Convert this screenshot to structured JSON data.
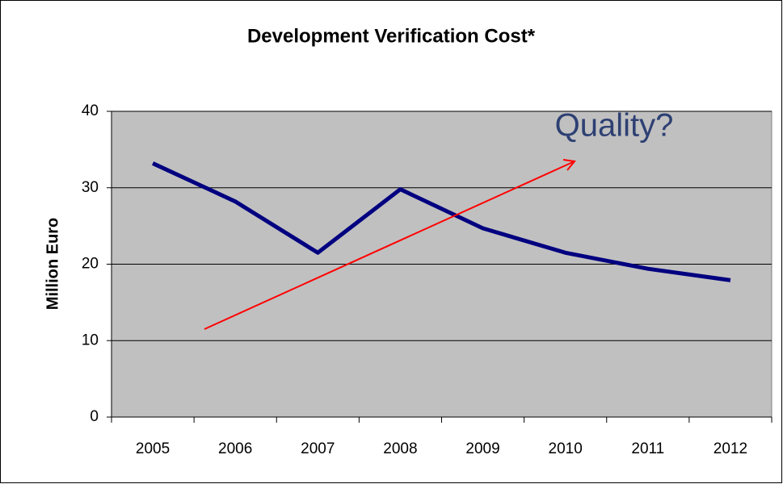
{
  "chart_data": {
    "type": "line",
    "title": "Development Verification Cost*",
    "y_label": "Million Euro",
    "annotation": "Quality?",
    "categories": [
      "2005",
      "2006",
      "2007",
      "2008",
      "2009",
      "2010",
      "2011",
      "2012"
    ],
    "series": [
      {
        "name": "Development Verification Cost",
        "color": "#000080",
        "values": [
          33.2,
          28.2,
          21.5,
          29.8,
          24.7,
          21.5,
          19.4,
          17.9
        ]
      }
    ],
    "ylim": [
      0,
      40
    ],
    "yticks": [
      0,
      10,
      20,
      30,
      40
    ],
    "grid": true,
    "legend": false
  }
}
